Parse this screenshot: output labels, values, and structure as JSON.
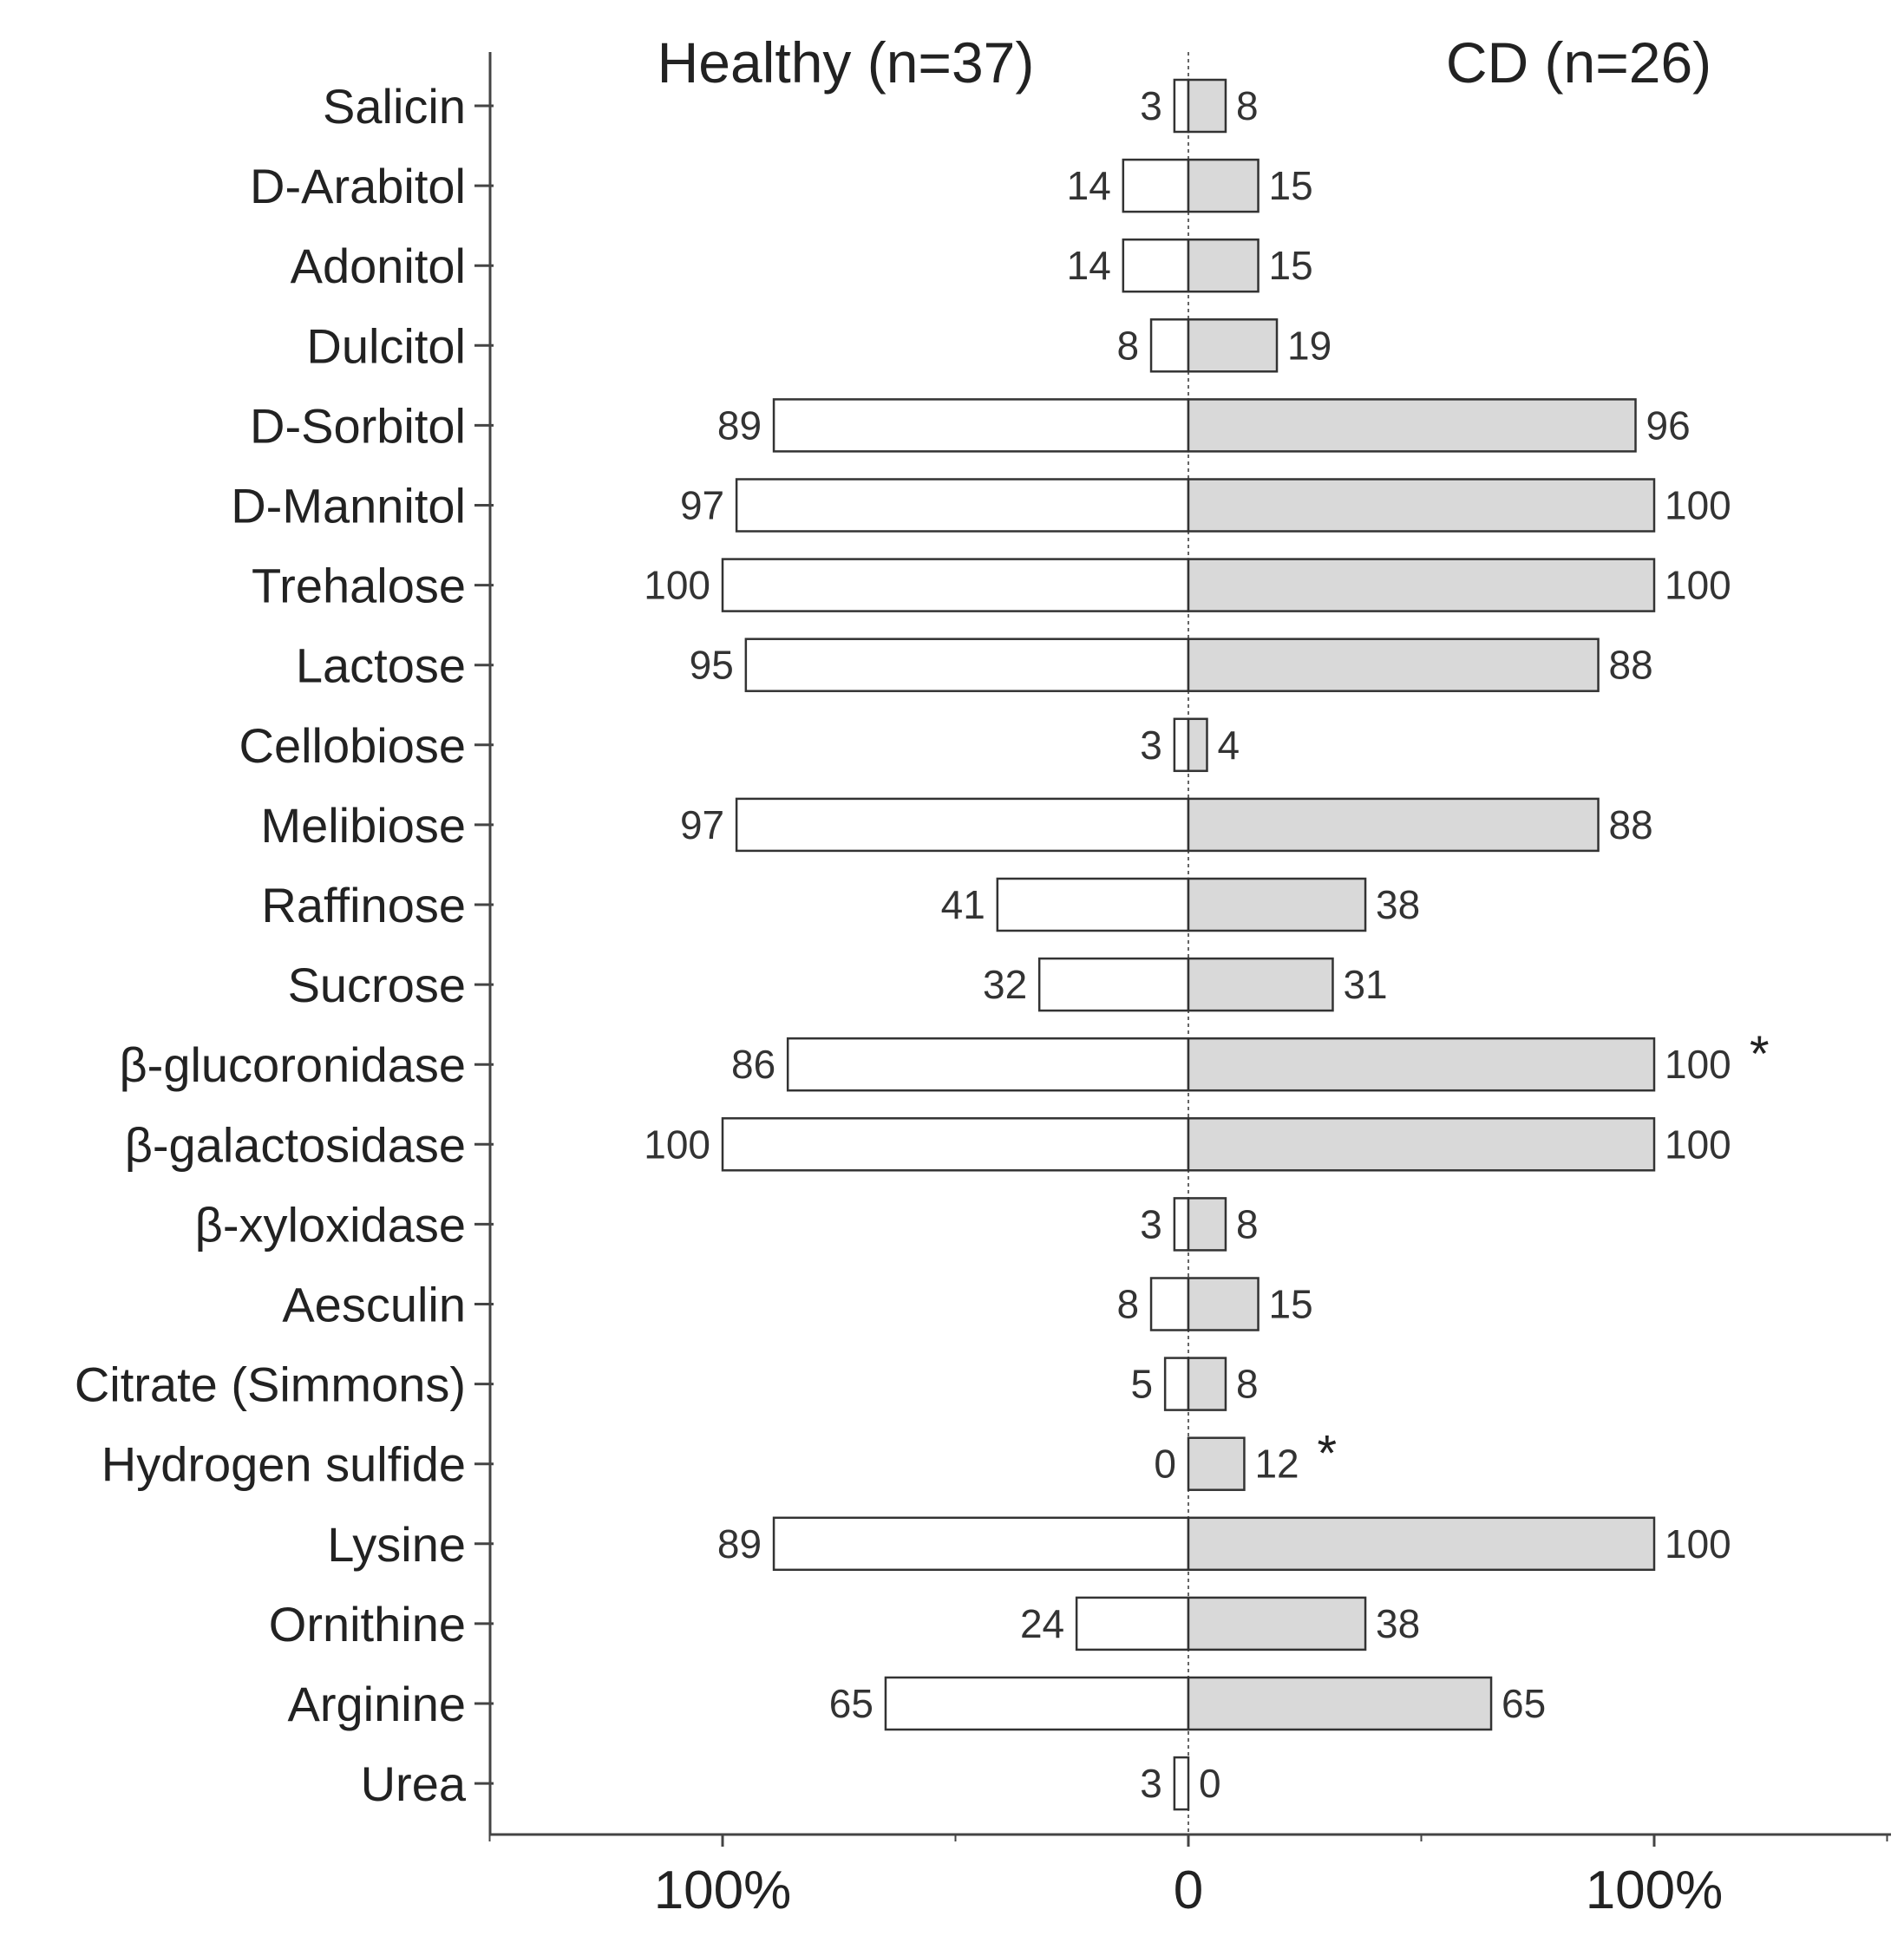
{
  "chart_data": {
    "type": "bar",
    "orientation": "horizontal-diverging",
    "series": [
      {
        "name": "Healthy (n=37)",
        "side": "left",
        "color": "#ffffff",
        "values": [
          3,
          14,
          14,
          8,
          89,
          97,
          100,
          95,
          3,
          97,
          41,
          32,
          86,
          100,
          3,
          8,
          5,
          0,
          89,
          24,
          65,
          3
        ]
      },
      {
        "name": "CD (n=26)",
        "side": "right",
        "color": "#d9d9d9",
        "values": [
          8,
          15,
          15,
          19,
          96,
          100,
          100,
          88,
          4,
          88,
          38,
          31,
          100,
          100,
          8,
          15,
          8,
          12,
          100,
          38,
          65,
          0
        ],
        "significant": [
          false,
          false,
          false,
          false,
          false,
          false,
          false,
          false,
          false,
          false,
          false,
          false,
          true,
          false,
          false,
          false,
          false,
          true,
          false,
          false,
          false,
          false
        ]
      }
    ],
    "categories": [
      "Salicin",
      "D-Arabitol",
      "Adonitol",
      "Dulcitol",
      "D-Sorbitol",
      "D-Mannitol",
      "Trehalose",
      "Lactose",
      "Cellobiose",
      "Melibiose",
      "Raffinose",
      "Sucrose",
      "β-glucoronidase",
      "β-galactosidase",
      "β-xyloxidase",
      "Aesculin",
      "Citrate (Simmons)",
      "Hydrogen sulfide",
      "Lysine",
      "Ornithine",
      "Arginine",
      "Urea"
    ],
    "significance_marker": "*",
    "xlim": [
      -150,
      150
    ],
    "xticks_major": [
      -100,
      0,
      100
    ],
    "xticks_minor": [
      -150,
      -50,
      50,
      150
    ],
    "xtick_labels": [
      "100%",
      "0",
      "100%"
    ],
    "xlabel": "",
    "ylabel": "",
    "title": "",
    "grid": false,
    "center_line": "dotted"
  }
}
